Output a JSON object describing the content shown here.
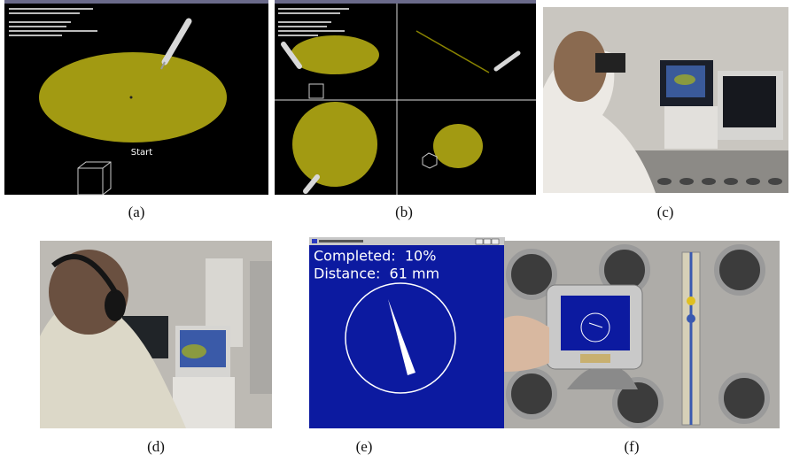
{
  "panels": [
    {
      "caption": "(a)",
      "texts": [
        "Start"
      ]
    },
    {
      "caption": "(b)"
    },
    {
      "caption": "(c)"
    },
    {
      "caption": "(d)"
    },
    {
      "caption": "(e)",
      "texts": [
        "Completed:  10%",
        "Distance:  61 mm"
      ]
    },
    {
      "caption": "(f)"
    }
  ]
}
